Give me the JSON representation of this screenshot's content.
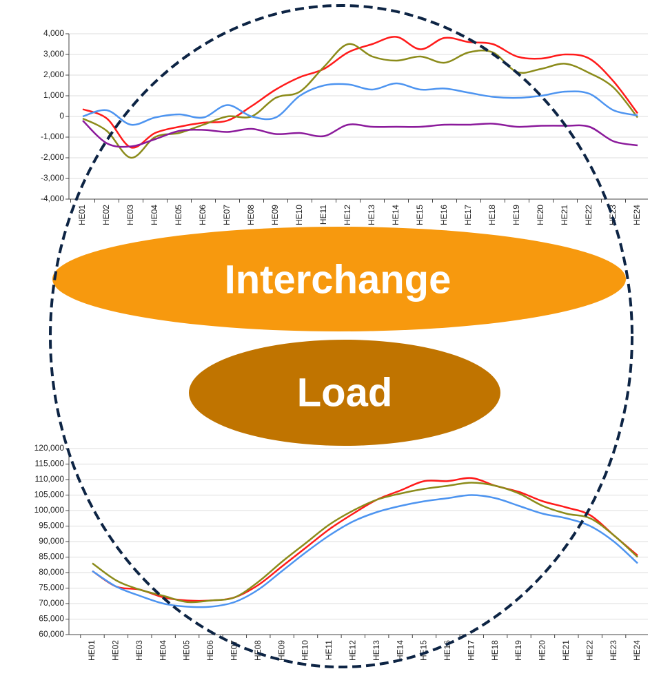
{
  "chart_data": [
    {
      "type": "line",
      "annotation": "Interchange",
      "categories": [
        "HE01",
        "HE02",
        "HE03",
        "HE04",
        "HE05",
        "HE06",
        "HE07",
        "HE08",
        "HE09",
        "HE10",
        "HE11",
        "HE12",
        "HE13",
        "HE14",
        "HE15",
        "HE16",
        "HE17",
        "HE18",
        "HE19",
        "HE20",
        "HE21",
        "HE22",
        "HE23",
        "HE24"
      ],
      "series": [
        {
          "color": "#ff1a1a",
          "values": [
            350,
            -100,
            -1500,
            -800,
            -500,
            -300,
            -200,
            500,
            1300,
            1900,
            2300,
            3100,
            3500,
            3850,
            3250,
            3800,
            3600,
            3500,
            2900,
            2800,
            3000,
            2800,
            1700,
            150
          ]
        },
        {
          "color": "#8b8b1a",
          "values": [
            -100,
            -700,
            -2000,
            -1000,
            -800,
            -400,
            0,
            0,
            900,
            1200,
            2400,
            3500,
            2900,
            2700,
            2900,
            2600,
            3100,
            3100,
            2150,
            2300,
            2550,
            2100,
            1400,
            -50
          ]
        },
        {
          "color": "#4d94f0",
          "values": [
            0,
            300,
            -400,
            -50,
            100,
            -50,
            550,
            0,
            -50,
            1000,
            1500,
            1550,
            1300,
            1600,
            1300,
            1350,
            1150,
            950,
            900,
            1000,
            1200,
            1100,
            300,
            50
          ]
        },
        {
          "color": "#8b1a9b",
          "values": [
            -200,
            -1300,
            -1450,
            -1100,
            -700,
            -650,
            -750,
            -600,
            -850,
            -800,
            -950,
            -400,
            -500,
            -500,
            -500,
            -400,
            -400,
            -350,
            -500,
            -450,
            -450,
            -500,
            -1200,
            -1400
          ]
        }
      ],
      "ylim": [
        -4000,
        4000
      ],
      "yticks": [
        {
          "value": -4000,
          "label": "-4,000"
        },
        {
          "value": -3000,
          "label": "-3,000"
        },
        {
          "value": -2000,
          "label": "-2,000"
        },
        {
          "value": -1000,
          "label": "-1,000"
        },
        0,
        {
          "value": 1000,
          "label": "1,000"
        },
        {
          "value": 2000,
          "label": "2,000"
        },
        {
          "value": 3000,
          "label": "3,000"
        },
        {
          "value": 4000,
          "label": "4,000"
        }
      ],
      "grid": true
    },
    {
      "type": "line",
      "annotation": "Load",
      "categories": [
        "HE01",
        "HE02",
        "HE03",
        "HE04",
        "HE05",
        "HE06",
        "HE07",
        "HE08",
        "HE09",
        "HE10",
        "HE11",
        "HE12",
        "HE13",
        "HE14",
        "HE15",
        "HE16",
        "HE17",
        "HE18",
        "HE19",
        "HE20",
        "HE21",
        "HE22",
        "HE23",
        "HE24"
      ],
      "series": [
        {
          "color": "#ff1a1a",
          "values": [
            80500,
            75500,
            74500,
            72000,
            71000,
            71000,
            72000,
            76000,
            82000,
            88000,
            94000,
            99000,
            103500,
            106500,
            109500,
            109500,
            110500,
            108000,
            106000,
            103000,
            101000,
            98500,
            92000,
            85500
          ]
        },
        {
          "color": "#8b8b1a",
          "values": [
            83000,
            77500,
            74500,
            72500,
            70500,
            71000,
            72000,
            77000,
            83500,
            89500,
            95500,
            100000,
            103500,
            105500,
            107000,
            108000,
            109000,
            108000,
            105500,
            101500,
            99000,
            97500,
            92000,
            85000
          ]
        },
        {
          "color": "#4d94f0",
          "values": [
            80500,
            75500,
            72500,
            70000,
            69000,
            69000,
            70500,
            74500,
            80500,
            86500,
            92000,
            96500,
            99500,
            101500,
            103000,
            104000,
            105000,
            104000,
            101500,
            99000,
            97500,
            95000,
            90000,
            83000
          ]
        }
      ],
      "ylim": [
        60000,
        120000
      ],
      "yticks": [
        {
          "value": 60000,
          "label": "60,000"
        },
        {
          "value": 65000,
          "label": "65,000"
        },
        {
          "value": 70000,
          "label": "70,000"
        },
        {
          "value": 75000,
          "label": "75,000"
        },
        {
          "value": 80000,
          "label": "80,000"
        },
        {
          "value": 85000,
          "label": "85,000"
        },
        {
          "value": 90000,
          "label": "90,000"
        },
        {
          "value": 95000,
          "label": "95,000"
        },
        {
          "value": 100000,
          "label": "100,000"
        },
        {
          "value": 105000,
          "label": "105,000"
        },
        {
          "value": 110000,
          "label": "110,000"
        },
        {
          "value": 115000,
          "label": "115,000"
        },
        {
          "value": 120000,
          "label": "120,000"
        }
      ],
      "grid": true
    }
  ]
}
